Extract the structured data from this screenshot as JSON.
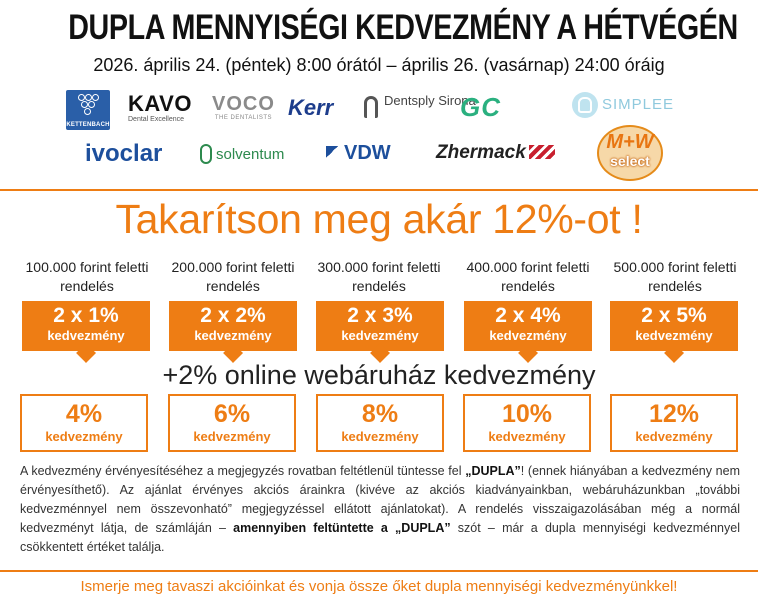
{
  "header": {
    "title": "DUPLA MENNYISÉGI KEDVEZMÉNY A HÉTVÉGÉN",
    "subtitle": "2026. április 24. (péntek) 8:00 órától – április 26. (vasárnap) 24:00 óráig"
  },
  "logos": {
    "kettenbach": "KETTENBACH",
    "kavo_main": "KAVO",
    "kavo_sub": "Dental Excellence",
    "voco_main": "VOCO",
    "voco_sub": "THE DENTALISTS",
    "kerr": "Kerr",
    "dentsply": "Dentsply Sirona",
    "gc": "GC",
    "simplee": "SIMPLEE",
    "ivoclar": "ivoclar",
    "solventum": "solventum",
    "vdw": "VDW",
    "zhermack": "Zhermack",
    "mw_top": "M+W",
    "mw_bottom": "select"
  },
  "headline": "Takarítson meg akár 12%-ot !",
  "tiers": [
    {
      "label": "100.000 forint feletti rendelés",
      "discount": "2 x 1%",
      "discount_word": "kedvezmény",
      "total": "4%",
      "total_word": "kedvezmény"
    },
    {
      "label": "200.000 forint feletti rendelés",
      "discount": "2 x 2%",
      "discount_word": "kedvezmény",
      "total": "6%",
      "total_word": "kedvezmény"
    },
    {
      "label": "300.000 forint feletti rendelés",
      "discount": "2 x 3%",
      "discount_word": "kedvezmény",
      "total": "8%",
      "total_word": "kedvezmény"
    },
    {
      "label": "400.000 forint feletti rendelés",
      "discount": "2 x 4%",
      "discount_word": "kedvezmény",
      "total": "10%",
      "total_word": "kedvezmény"
    },
    {
      "label": "500.000 forint feletti rendelés",
      "discount": "2 x 5%",
      "discount_word": "kedvezmény",
      "total": "12%",
      "total_word": "kedvezmény"
    }
  ],
  "online_bonus": "+2% online webáruház kedvezmény",
  "terms": {
    "part1": "A  kedvezmény érvényesítéséhez a megjegyzés rovatban feltétlenül tüntesse fel ",
    "keyword1": "„DUPLA”",
    "part2": "! (ennek hiányában a kedvezmény nem érvényesíthető). Az ajánlat érvényes akciós árainkra (kivéve az akciós kiadványainkban, webáruházunkban „további kedvezménnyel nem összevonható” megjegyzéssel ellátott ajánlatokat). A rendelés  visszaigazolásában még a normál kedvezményt látja, de számláján – ",
    "keyword2": "amennyiben feltüntette a „DUPLA”",
    "part3": " szót – már a dupla mennyiségi kedvezménnyel csökkentett értéket találja."
  },
  "footer": "Ismerje meg tavaszi akcióinkat és vonja össze őket dupla mennyiségi kedvezményünkkel!",
  "colors": {
    "accent": "#ee7d14"
  }
}
